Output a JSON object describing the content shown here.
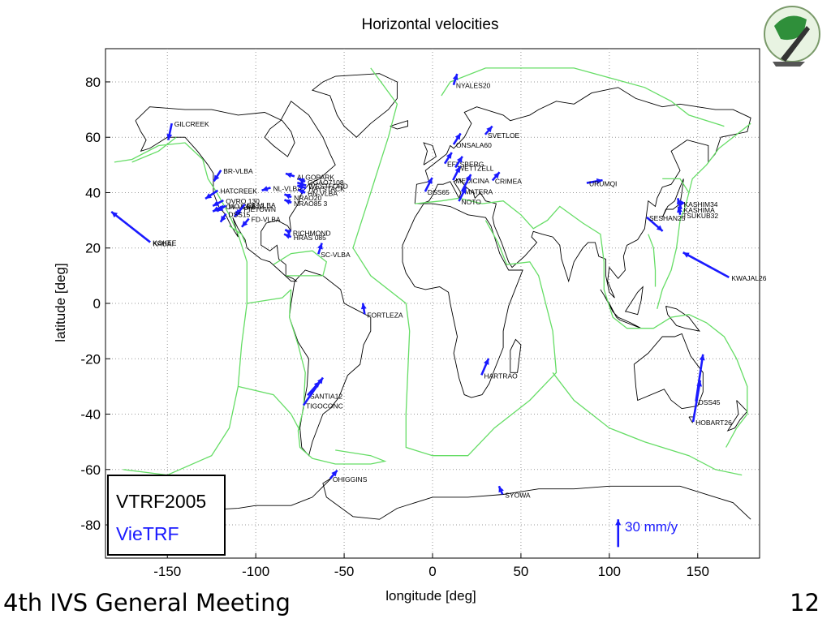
{
  "chart_data": {
    "type": "scatter",
    "title": "Horizontal velocities",
    "xlabel": "longitude [deg]",
    "ylabel": "latitude [deg]",
    "xlim": [
      -185,
      185
    ],
    "ylim": [
      -92,
      92
    ],
    "xticks": [
      -150,
      -100,
      -50,
      0,
      50,
      100,
      150
    ],
    "yticks": [
      -80,
      -60,
      -40,
      -20,
      0,
      20,
      40,
      60,
      80
    ],
    "grid": true,
    "legend": {
      "placement": "bottom-left",
      "entries": [
        {
          "label": "VTRF2005",
          "color": "#000000"
        },
        {
          "label": "VieTRF",
          "color": "#1a1aff"
        }
      ]
    },
    "scale_arrow": {
      "label": "30 mm/y",
      "lon": 105,
      "lat": -88,
      "dlat": 10
    },
    "stations": [
      {
        "name": "NYALES20",
        "lon": 11.9,
        "lat": 78.9,
        "dlon": 2,
        "dlat": 4
      },
      {
        "name": "GILCREEK",
        "lon": -147.5,
        "lat": 65,
        "dlon": -2,
        "dlat": -6
      },
      {
        "name": "ONSALA60",
        "lon": 11.9,
        "lat": 57.4,
        "dlon": 4,
        "dlat": 4
      },
      {
        "name": "SVETLOE",
        "lon": 29.8,
        "lat": 61,
        "dlon": 4,
        "dlat": 3
      },
      {
        "name": "EFLSBERG",
        "lon": 6.9,
        "lat": 50.5,
        "dlon": 4,
        "dlat": 4
      },
      {
        "name": "WETTZELL",
        "lon": 12.9,
        "lat": 49.1,
        "dlon": 4,
        "dlat": 4
      },
      {
        "name": "MEDICINA",
        "lon": 11.6,
        "lat": 44.5,
        "dlon": 4,
        "dlat": 5
      },
      {
        "name": "MATERA",
        "lon": 16.7,
        "lat": 40.6,
        "dlon": 5,
        "dlat": 6
      },
      {
        "name": "NOTO",
        "lon": 14.9,
        "lat": 36.9,
        "dlon": 4,
        "dlat": 5
      },
      {
        "name": "DSS65",
        "lon": -4.2,
        "lat": 40.4,
        "dlon": 4,
        "dlat": 5
      },
      {
        "name": "CRIMEA",
        "lon": 33.9,
        "lat": 44.4,
        "dlon": 4,
        "dlat": 3
      },
      {
        "name": "URUMQI",
        "lon": 87.2,
        "lat": 43.5,
        "dlon": 9,
        "dlat": 1
      },
      {
        "name": "KASHIM34",
        "lon": 140.7,
        "lat": 36,
        "dlon": -1,
        "dlat": -1
      },
      {
        "name": "KASHIMA",
        "lon": 140.7,
        "lat": 34,
        "dlon": -2,
        "dlat": 4
      },
      {
        "name": "TSUKUB32",
        "lon": 140.1,
        "lat": 32,
        "dlon": -1,
        "dlat": 3
      },
      {
        "name": "SESHAN25",
        "lon": 121.2,
        "lat": 31.1,
        "dlon": 9,
        "dlat": -5
      },
      {
        "name": "KWAJAL26",
        "lon": 167.7,
        "lat": 9.4,
        "dlon": -26,
        "dlat": 9
      },
      {
        "name": "KOKEE",
        "lon": -159.7,
        "lat": 22.1,
        "dlon": -22,
        "dlat": 11
      },
      {
        "name": "KAUAI",
        "lon": -159.6,
        "lat": 21.9,
        "dlon": 0,
        "dlat": 0
      },
      {
        "name": "BR-VLBA",
        "lon": -119.7,
        "lat": 48.1,
        "dlon": -4,
        "dlat": -4
      },
      {
        "name": "HATCREEK",
        "lon": -121.5,
        "lat": 40.8,
        "dlon": -7,
        "dlat": -3
      },
      {
        "name": "OVRO 130",
        "lon": -118.3,
        "lat": 37.2,
        "dlon": -6,
        "dlat": -2
      },
      {
        "name": "OV-VLBA",
        "lon": -118.3,
        "lat": 35.2,
        "dlon": -6,
        "dlat": -2
      },
      {
        "name": "MOJAVE12",
        "lon": -116.9,
        "lat": 35.3,
        "dlon": -5,
        "dlat": -2
      },
      {
        "name": "LA-VLBA",
        "lon": -106.2,
        "lat": 35.8,
        "dlon": -5,
        "dlat": -4
      },
      {
        "name": "PIETOWN",
        "lon": -108.1,
        "lat": 34.3,
        "dlon": -4,
        "dlat": -3
      },
      {
        "name": "DSS15",
        "lon": -116.9,
        "lat": 32.4,
        "dlon": -3,
        "dlat": -3
      },
      {
        "name": "FD-VLBA",
        "lon": -103.9,
        "lat": 30.6,
        "dlon": -4,
        "dlat": -3
      },
      {
        "name": "HRAS 085",
        "lon": -80,
        "lat": 24,
        "dlon": -4,
        "dlat": 1
      },
      {
        "name": "NL-VLBA",
        "lon": -91.6,
        "lat": 41.8,
        "dlon": -5,
        "dlat": -1
      },
      {
        "name": "ALGOPARK",
        "lon": -78.1,
        "lat": 45.9,
        "dlon": -5,
        "dlat": 1
      },
      {
        "name": "GGAO7108",
        "lon": -72,
        "lat": 44,
        "dlon": -4,
        "dlat": 1
      },
      {
        "name": "WESTFORD",
        "lon": -71.5,
        "lat": 42.6,
        "dlon": -5,
        "dlat": 1
      },
      {
        "name": "HAYSTACK",
        "lon": -71.5,
        "lat": 41.6,
        "dlon": -5,
        "dlat": 1
      },
      {
        "name": "HN-VLBA",
        "lon": -72,
        "lat": 40,
        "dlon": -4,
        "dlat": 1
      },
      {
        "name": "NRAO20",
        "lon": -79.8,
        "lat": 38.4,
        "dlon": -4,
        "dlat": 1
      },
      {
        "name": "NRAO85 3",
        "lon": -79.8,
        "lat": 36.4,
        "dlon": -4,
        "dlat": 1
      },
      {
        "name": "RICHMOND",
        "lon": -80.4,
        "lat": 25.6,
        "dlon": -3,
        "dlat": 1
      },
      {
        "name": "SC-VLBA",
        "lon": -64.6,
        "lat": 17.8,
        "dlon": 2,
        "dlat": 4
      },
      {
        "name": "FORTLEZA",
        "lon": -38.4,
        "lat": -3.9,
        "dlon": -1,
        "dlat": 4
      },
      {
        "name": "SANTIA12",
        "lon": -70.7,
        "lat": -33.2,
        "dlon": 7,
        "dlat": 5
      },
      {
        "name": "TIGOCONC",
        "lon": -73,
        "lat": -36.8,
        "dlon": 11,
        "dlat": 10
      },
      {
        "name": "OHIGGINS",
        "lon": -57.9,
        "lat": -63.3,
        "dlon": 4,
        "dlat": 3
      },
      {
        "name": "HARTRAO",
        "lon": 27.7,
        "lat": -25.9,
        "dlon": 4,
        "dlat": 6
      },
      {
        "name": "SYOWA",
        "lon": 39.6,
        "lat": -69,
        "dlon": -2,
        "dlat": 3
      },
      {
        "name": "HOBART26",
        "lon": 147.4,
        "lat": -42.8,
        "dlon": 4,
        "dlat": 15
      },
      {
        "name": "DSS45",
        "lon": 149,
        "lat": -35.4,
        "dlon": 4,
        "dlat": 17
      }
    ]
  },
  "footer": {
    "meeting": "4th IVS General Meeting",
    "page": "12"
  },
  "colors": {
    "arrow": "#1a1aff",
    "plate_boundary": "#66dd66",
    "coast": "#000000",
    "vietrf_text": "#1a1aff"
  }
}
